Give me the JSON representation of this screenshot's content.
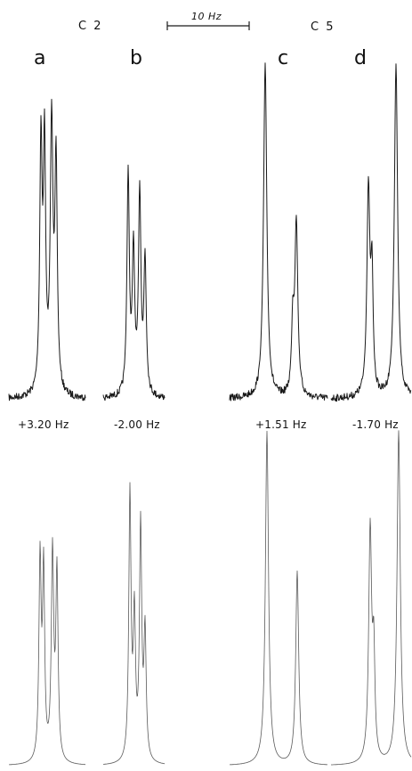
{
  "groups": {
    "c2": "C 2",
    "c5": "C 5"
  },
  "scale_bar": {
    "label": "10 Hz"
  },
  "panels": [
    {
      "label": "a",
      "coupling": "+3.20 Hz",
      "experimental": [
        {
          "x": 46,
          "h": 0.74,
          "w": 1.6
        },
        {
          "x": 50,
          "h": 0.72,
          "w": 1.5
        },
        {
          "x": 58,
          "h": 0.8,
          "w": 1.8
        },
        {
          "x": 63,
          "h": 0.68,
          "w": 1.6
        }
      ],
      "simulated": [
        {
          "x": 45,
          "h": 0.6,
          "w": 1.5
        },
        {
          "x": 49,
          "h": 0.56,
          "w": 1.4
        },
        {
          "x": 59,
          "h": 0.62,
          "w": 1.6
        },
        {
          "x": 64,
          "h": 0.56,
          "w": 1.5
        }
      ]
    },
    {
      "label": "b",
      "coupling": "-2.00 Hz",
      "experimental": [
        {
          "x": 144,
          "h": 0.66,
          "w": 1.6
        },
        {
          "x": 150,
          "h": 0.42,
          "w": 1.6
        },
        {
          "x": 157,
          "h": 0.6,
          "w": 1.6
        },
        {
          "x": 163,
          "h": 0.4,
          "w": 1.6
        }
      ],
      "simulated": [
        {
          "x": 146,
          "h": 0.8,
          "w": 1.5
        },
        {
          "x": 151,
          "h": 0.42,
          "w": 1.5
        },
        {
          "x": 158,
          "h": 0.7,
          "w": 1.5
        },
        {
          "x": 163,
          "h": 0.38,
          "w": 1.5
        }
      ]
    },
    {
      "label": "c",
      "coupling": "+1.51 Hz",
      "experimental": [
        {
          "x": 298,
          "h": 1.0,
          "w": 2.2
        },
        {
          "x": 333,
          "h": 0.52,
          "w": 2.0
        },
        {
          "x": 329,
          "h": 0.2,
          "w": 1.6
        }
      ],
      "simulated": [
        {
          "x": 300,
          "h": 1.0,
          "w": 2.1
        },
        {
          "x": 334,
          "h": 0.58,
          "w": 2.0
        }
      ]
    },
    {
      "label": "d",
      "coupling": "-1.70 Hz",
      "experimental": [
        {
          "x": 414,
          "h": 0.62,
          "w": 2.0
        },
        {
          "x": 418,
          "h": 0.34,
          "w": 1.5
        },
        {
          "x": 445,
          "h": 1.0,
          "w": 2.2
        }
      ],
      "simulated": [
        {
          "x": 416,
          "h": 0.7,
          "w": 2.0
        },
        {
          "x": 420,
          "h": 0.3,
          "w": 1.5
        },
        {
          "x": 448,
          "h": 1.0,
          "w": 2.2
        }
      ]
    }
  ]
}
